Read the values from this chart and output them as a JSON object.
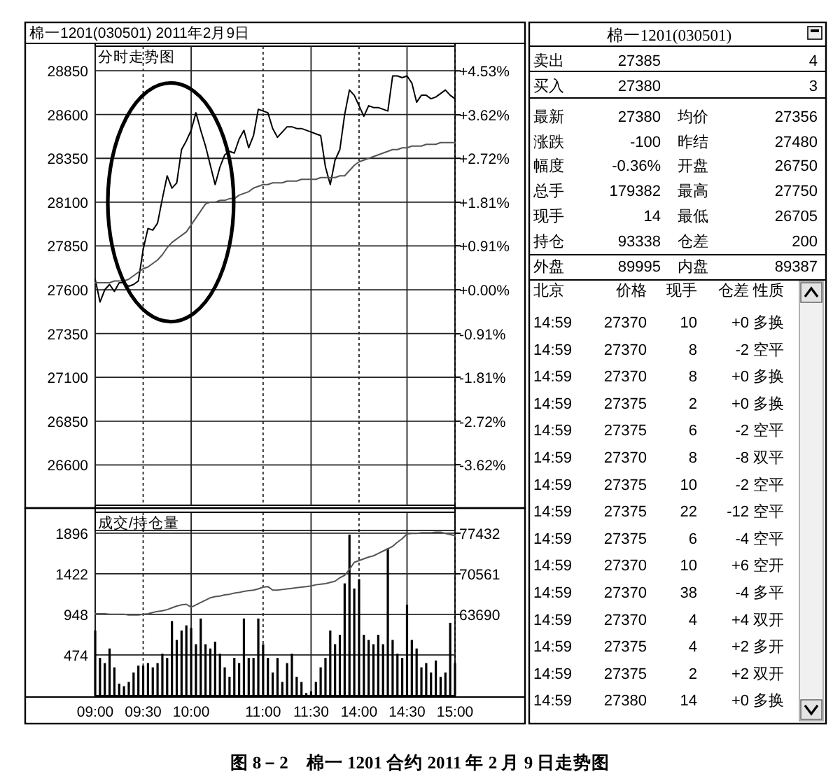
{
  "chart_data": [
    {
      "type": "line",
      "title": "棉一1201(030501) 2011年2月9日",
      "subtitle": "分时走势图",
      "annotations": [
        "图 8－2　棉一 1201 合约 2011 年 2 月 9 日走势图"
      ],
      "grid": true,
      "tick_labels": "y",
      "categories": [
        null,
        null,
        null,
        null,
        null,
        null,
        null,
        null,
        null,
        null,
        null,
        null,
        null,
        null,
        null,
        null,
        null,
        null,
        null,
        null,
        null,
        null,
        null,
        null,
        null,
        null,
        null,
        null,
        null,
        null,
        null,
        null,
        null,
        null,
        null,
        null,
        null,
        null,
        null,
        null,
        null,
        null,
        null,
        null,
        null,
        null,
        null,
        null,
        null,
        null,
        null,
        null,
        null,
        null,
        null,
        null,
        null,
        null,
        null,
        null,
        null,
        null,
        null,
        null,
        null,
        null,
        null,
        null,
        null,
        null,
        null,
        null,
        null,
        null,
        null,
        null
      ],
      "ylim": [
        26370,
        28990
      ],
      "yticks": [
        26600,
        26850,
        27100,
        27350,
        27600,
        27850,
        28100,
        28350,
        28600,
        28850
      ],
      "y2lim": [
        -4.46,
        5.04
      ],
      "y2ticks": [
        {
          "value": -3.62,
          "label": "-3.62%"
        },
        {
          "value": -2.72,
          "label": "-2.72%"
        },
        {
          "value": -1.81,
          "label": "-1.81%"
        },
        {
          "value": -0.91,
          "label": "-0.91%"
        },
        {
          "value": 0,
          "label": "+0.00%"
        },
        {
          "value": 0.91,
          "label": "+0.91%"
        },
        {
          "value": 1.81,
          "label": "+1.81%"
        },
        {
          "value": 2.72,
          "label": "+2.72%"
        },
        {
          "value": 3.62,
          "label": "+3.62%"
        },
        {
          "value": 4.53,
          "label": "+4.53%"
        }
      ],
      "series": [
        {
          "color": "#000000",
          "values": [
            27660,
            27530,
            27600,
            27630,
            27590,
            27640,
            27640,
            27620,
            27630,
            27650,
            27830,
            27950,
            27940,
            27980,
            28120,
            28250,
            28180,
            28210,
            28400,
            28450,
            28510,
            28610,
            28510,
            28420,
            28310,
            28200,
            28300,
            28370,
            28390,
            28380,
            28460,
            28510,
            28410,
            28480,
            28630,
            28620,
            28610,
            28520,
            28470,
            28500,
            28530,
            28530,
            28520,
            28520,
            28510,
            28500,
            28490,
            28480,
            28300,
            28200,
            28340,
            28400,
            28600,
            28740,
            28710,
            28650,
            28590,
            28650,
            28640,
            28640,
            28630,
            28620,
            28820,
            28820,
            28810,
            28820,
            28780,
            28670,
            28710,
            28710,
            28690,
            28700,
            28720,
            28740,
            28710,
            28690
          ]
        },
        {
          "color": "#555555",
          "values": [
            27640,
            27640,
            27640,
            27640,
            27650,
            27650,
            27650,
            27660,
            27680,
            27700,
            27720,
            27730,
            27750,
            27770,
            27800,
            27840,
            27870,
            27890,
            27910,
            27930,
            27970,
            28010,
            28050,
            28090,
            28100,
            28100,
            28110,
            28110,
            28120,
            28120,
            28140,
            28150,
            28160,
            28180,
            28190,
            28200,
            28200,
            28210,
            28210,
            28210,
            28220,
            28220,
            28220,
            28230,
            28230,
            28230,
            28230,
            28240,
            28240,
            28240,
            28240,
            28250,
            28250,
            28280,
            28310,
            28330,
            28340,
            28350,
            28360,
            28370,
            28380,
            28390,
            28400,
            28400,
            28410,
            28410,
            28420,
            28420,
            28420,
            28430,
            28430,
            28430,
            28440,
            28440,
            28440,
            28440
          ]
        }
      ]
    },
    {
      "type": "bar",
      "title": "成交/持仓量",
      "grid": true,
      "categories": [
        "09:00",
        null,
        null,
        null,
        null,
        null,
        null,
        null,
        null,
        null,
        "09:30",
        null,
        null,
        null,
        null,
        null,
        null,
        null,
        null,
        null,
        "10:00",
        null,
        null,
        null,
        null,
        null,
        null,
        null,
        null,
        null,
        null,
        null,
        null,
        null,
        null,
        "11:00",
        null,
        null,
        null,
        null,
        null,
        null,
        null,
        null,
        null,
        "11:30",
        null,
        null,
        null,
        null,
        null,
        null,
        null,
        null,
        null,
        "14:00",
        null,
        null,
        null,
        null,
        null,
        null,
        null,
        null,
        null,
        "14:30",
        null,
        null,
        null,
        null,
        null,
        null,
        null,
        null,
        null,
        "15:00"
      ],
      "ylim": [
        0,
        2140
      ],
      "yticks": [
        474,
        948,
        1422,
        1896
      ],
      "y2lim": [
        49948,
        80970
      ],
      "y2ticks": [
        63690,
        70561,
        77432
      ],
      "series": [
        {
          "type": "bar",
          "color": "#000000",
          "values": [
            760,
            440,
            380,
            550,
            330,
            140,
            110,
            160,
            270,
            350,
            350,
            380,
            330,
            380,
            490,
            440,
            870,
            650,
            760,
            820,
            790,
            600,
            900,
            600,
            550,
            630,
            490,
            330,
            220,
            440,
            380,
            900,
            440,
            440,
            900,
            600,
            440,
            270,
            440,
            160,
            380,
            490,
            220,
            160,
            30,
            50,
            160,
            330,
            440,
            760,
            600,
            710,
            1310,
            1880,
            1250,
            1360,
            710,
            650,
            600,
            710,
            600,
            1720,
            650,
            490,
            440,
            1060,
            650,
            550,
            330,
            380,
            270,
            410,
            220,
            270,
            850,
            380
          ]
        },
        {
          "type": "line",
          "axis": "y2",
          "color": "#555555",
          "values": [
            63800,
            63800,
            63800,
            63700,
            63700,
            63700,
            63700,
            63600,
            63600,
            63600,
            63700,
            63800,
            64000,
            64200,
            64300,
            64500,
            64800,
            65100,
            65300,
            65400,
            64900,
            65300,
            65700,
            66100,
            66500,
            66700,
            66800,
            67000,
            67100,
            67300,
            67400,
            67600,
            67700,
            67800,
            68000,
            68300,
            68400,
            67800,
            67800,
            67900,
            68000,
            68100,
            68200,
            68300,
            68400,
            68500,
            68700,
            68800,
            68900,
            69100,
            69300,
            69900,
            70300,
            71300,
            72500,
            72800,
            73100,
            73400,
            73600,
            74000,
            74400,
            74800,
            75200,
            75900,
            76500,
            77300,
            77400,
            77400,
            77500,
            77500,
            77500,
            77600,
            77600,
            77400,
            77200,
            77000
          ]
        }
      ]
    },
    {
      "type": "other",
      "title": "棉一1201(030501)",
      "annotations": [
        "卖出",
        "27385",
        "4",
        "买入",
        "27380",
        "3",
        "最新",
        "27380",
        "均价",
        "27356",
        "涨跌",
        "-100",
        "昨结",
        "27480",
        "幅度",
        "-0.36%",
        "开盘",
        "26750",
        "总手",
        "179382",
        "最高",
        "27750",
        "现手",
        "14",
        "最低",
        "26705",
        "持仓",
        "93338",
        "仓差",
        "200",
        "外盘",
        "89995",
        "内盘",
        "89387",
        "北京",
        "价格",
        "现手",
        "仓差",
        "性质",
        "14:59",
        "27370",
        "10",
        "+0",
        "多换",
        "14:59",
        "27370",
        "8",
        "-2",
        "空平",
        "14:59",
        "27370",
        "8",
        "+0",
        "多换",
        "14:59",
        "27375",
        "2",
        "+0",
        "多换",
        "14:59",
        "27375",
        "6",
        "-2",
        "空平",
        "14:59",
        "27370",
        "8",
        "-8",
        "双平",
        "14:59",
        "27375",
        "10",
        "-2",
        "空平",
        "14:59",
        "27375",
        "22",
        "-12",
        "空平",
        "14:59",
        "27375",
        "6",
        "-4",
        "空平",
        "14:59",
        "27370",
        "10",
        "+6",
        "空开",
        "14:59",
        "27370",
        "38",
        "-4",
        "多平",
        "14:59",
        "27370",
        "4",
        "+4",
        "双开",
        "14:59",
        "27375",
        "4",
        "+2",
        "多开",
        "14:59",
        "27375",
        "2",
        "+2",
        "双开",
        "14:59",
        "27380",
        "14",
        "+0",
        "多换"
      ]
    }
  ]
}
